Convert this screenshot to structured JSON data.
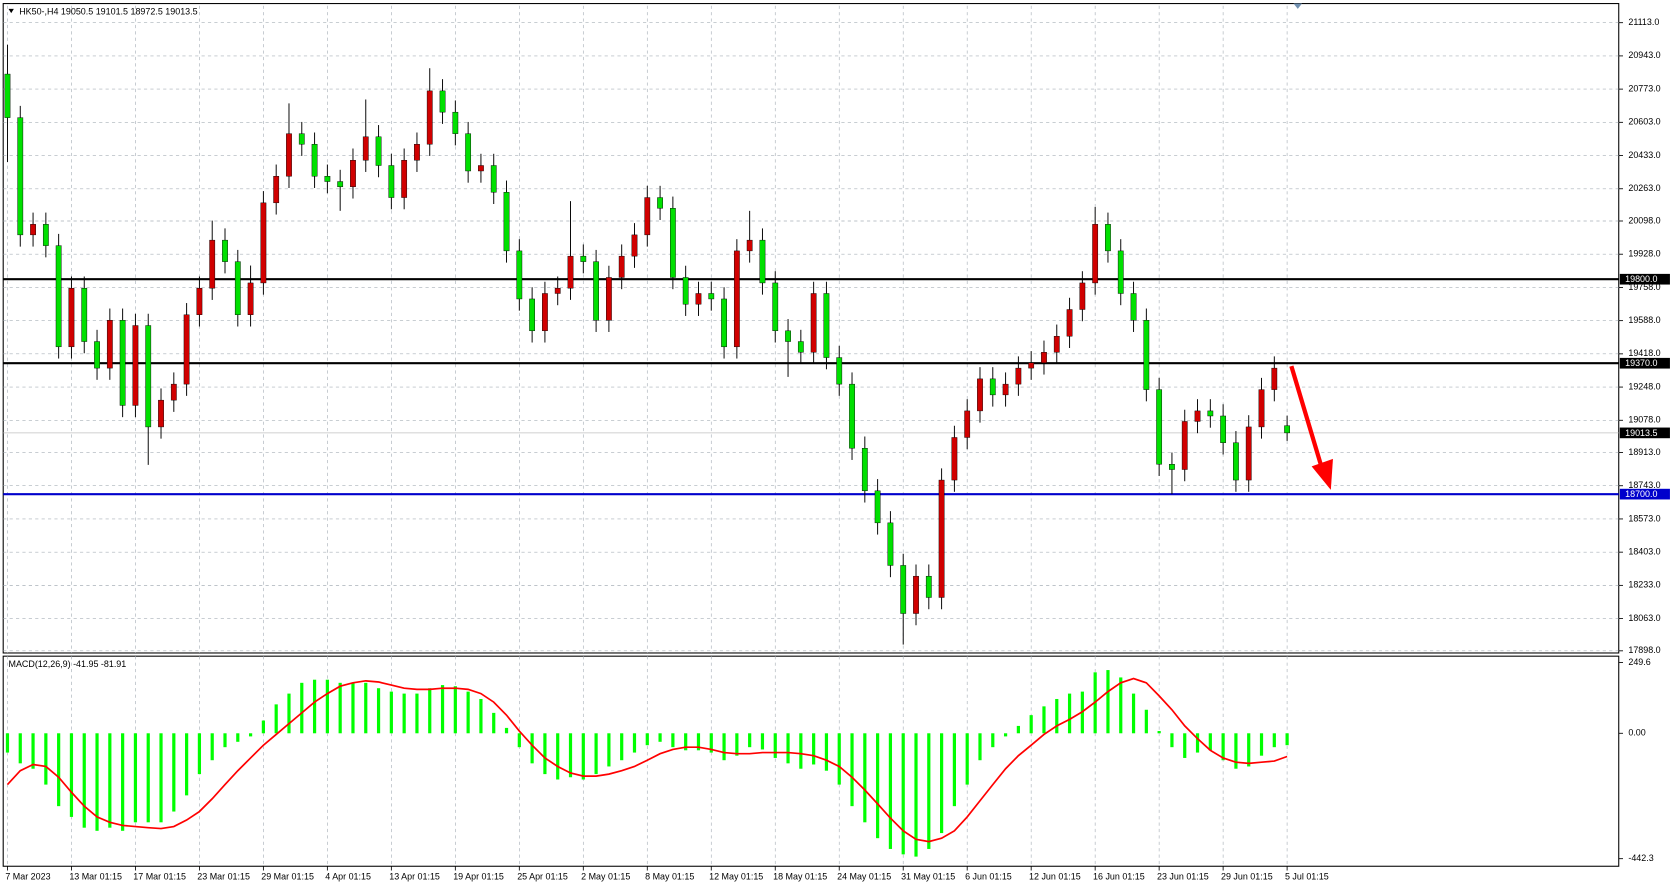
{
  "chart_data": [
    {
      "type": "candlestick",
      "title": "HK50-,H4  19050.5 19101.5 18972.5 19013.5",
      "categories": [
        "7 Mar 2023",
        null,
        null,
        null,
        null,
        "13 Mar 01:15",
        null,
        null,
        null,
        null,
        "17 Mar 01:15",
        null,
        null,
        null,
        null,
        "23 Mar 01:15",
        null,
        null,
        null,
        null,
        "29 Mar 01:15",
        null,
        null,
        null,
        null,
        "4 Apr 01:15",
        null,
        null,
        null,
        null,
        "13 Apr 01:15",
        null,
        null,
        null,
        null,
        "19 Apr 01:15",
        null,
        null,
        null,
        null,
        "25 Apr 01:15",
        null,
        null,
        null,
        null,
        "2 May 01:15",
        null,
        null,
        null,
        null,
        "8 May 01:15",
        null,
        null,
        null,
        null,
        "12 May 01:15",
        null,
        null,
        null,
        null,
        "18 May 01:15",
        null,
        null,
        null,
        null,
        "24 May 01:15",
        null,
        null,
        null,
        null,
        "31 May 01:15",
        null,
        null,
        null,
        null,
        "6 Jun 01:15",
        null,
        null,
        null,
        null,
        "12 Jun 01:15",
        null,
        null,
        null,
        null,
        "16 Jun 01:15",
        null,
        null,
        null,
        null,
        "23 Jun 01:15",
        null,
        null,
        null,
        null,
        "29 Jun 01:15",
        null,
        null,
        null,
        null,
        "5 Jul 01:15"
      ],
      "open": [
        20850,
        20627,
        20027,
        20081,
        19972,
        19454,
        19754,
        19481,
        19345,
        19590,
        19154,
        19563,
        19044,
        19181,
        19263,
        19618,
        19754,
        20000,
        19890,
        19618,
        19781,
        20191,
        20327,
        20545,
        20491,
        20327,
        20300,
        20273,
        20409,
        20529,
        20382,
        20218,
        20409,
        20491,
        20764,
        20655,
        20545,
        20354,
        20382,
        20245,
        19945,
        19699,
        19536,
        19727,
        19754,
        19918,
        19890,
        19590,
        19809,
        19918,
        20027,
        20218,
        20163,
        19809,
        19672,
        19727,
        19699,
        19454,
        19945,
        20000,
        19781,
        19536,
        19481,
        19426,
        19727,
        19399,
        19263,
        18935,
        18717,
        18553,
        18335,
        18089,
        18280,
        18171,
        18772,
        18990,
        19126,
        19290,
        19208,
        19263,
        19345,
        19372,
        19426,
        19508,
        19645,
        19781,
        20081,
        19945,
        19727,
        19590,
        19235,
        18853,
        18826,
        19072,
        19126,
        19100,
        18963,
        18772,
        19044,
        19235,
        19050.5
      ],
      "high": [
        21000,
        20687,
        20141,
        20141,
        20032,
        19814,
        19814,
        19541,
        19650,
        19650,
        19623,
        19623,
        19241,
        19323,
        19678,
        19814,
        20100,
        20060,
        19950,
        19870,
        20251,
        20387,
        20700,
        20605,
        20551,
        20387,
        20360,
        20469,
        20720,
        20589,
        20442,
        20469,
        20551,
        20880,
        20824,
        20715,
        20605,
        20442,
        20442,
        20305,
        20005,
        19759,
        19787,
        19814,
        20200,
        19978,
        19950,
        19869,
        19978,
        20087,
        20278,
        20278,
        20223,
        19869,
        19787,
        19787,
        19759,
        20005,
        20150,
        20060,
        19841,
        19596,
        19541,
        19787,
        19787,
        19459,
        19323,
        18995,
        18777,
        18613,
        18395,
        18340,
        18340,
        18832,
        19050,
        19186,
        19350,
        19350,
        19323,
        19405,
        19432,
        19486,
        19568,
        19705,
        19841,
        20170,
        20141,
        20005,
        19787,
        19650,
        19295,
        18913,
        19132,
        19186,
        19186,
        19160,
        19023,
        19104,
        19295,
        19405,
        19101.5
      ],
      "low": [
        20400,
        19967,
        19967,
        19912,
        19394,
        19394,
        19421,
        19285,
        19285,
        19094,
        19094,
        18850,
        18984,
        19121,
        19203,
        19558,
        19694,
        19830,
        19558,
        19558,
        19721,
        20131,
        20267,
        20431,
        20267,
        20240,
        20150,
        20213,
        20349,
        20322,
        20158,
        20158,
        20349,
        20431,
        20595,
        20485,
        20294,
        20294,
        20185,
        19885,
        19639,
        19476,
        19476,
        19667,
        19694,
        19830,
        19530,
        19530,
        19749,
        19858,
        19967,
        20103,
        19749,
        19612,
        19612,
        19639,
        19394,
        19394,
        19885,
        19721,
        19476,
        19300,
        19366,
        19366,
        19339,
        19203,
        18875,
        18657,
        18493,
        18275,
        17930,
        18029,
        18111,
        18111,
        18712,
        18930,
        19066,
        19148,
        19148,
        19203,
        19285,
        19312,
        19366,
        19448,
        19585,
        19721,
        19885,
        19667,
        19530,
        19175,
        18793,
        18700,
        18766,
        19012,
        19040,
        18903,
        18712,
        18712,
        18984,
        19175,
        18972.5
      ],
      "close": [
        20627,
        20027,
        20081,
        19972,
        19454,
        19754,
        19481,
        19345,
        19590,
        19154,
        19563,
        19044,
        19181,
        19263,
        19618,
        19754,
        20000,
        19890,
        19618,
        19781,
        20191,
        20327,
        20545,
        20491,
        20327,
        20300,
        20273,
        20409,
        20529,
        20382,
        20218,
        20409,
        20491,
        20764,
        20655,
        20545,
        20354,
        20382,
        20245,
        19945,
        19699,
        19536,
        19727,
        19754,
        19918,
        19890,
        19590,
        19809,
        19918,
        20027,
        20218,
        20163,
        19809,
        19672,
        19727,
        19699,
        19454,
        19945,
        20000,
        19781,
        19536,
        19481,
        19426,
        19727,
        19399,
        19263,
        18935,
        18717,
        18553,
        18335,
        18089,
        18280,
        18171,
        18772,
        18990,
        19126,
        19290,
        19208,
        19263,
        19345,
        19372,
        19426,
        19508,
        19645,
        19781,
        20081,
        19945,
        19727,
        19590,
        19235,
        18853,
        18826,
        19072,
        19126,
        19100,
        18963,
        18772,
        19044,
        19235,
        19345,
        19013.5
      ],
      "up_color": "#d00000",
      "down_color": "#00e000",
      "ylim": [
        17887,
        21200
      ],
      "yticks": [
        {
          "value": 21113,
          "label": "21113.0"
        },
        {
          "value": 20943,
          "label": "20943.0"
        },
        {
          "value": 20773,
          "label": "20773.0"
        },
        {
          "value": 20603,
          "label": "20603.0"
        },
        {
          "value": 20433,
          "label": "20433.0"
        },
        {
          "value": 20263,
          "label": "20263.0"
        },
        {
          "value": 20098,
          "label": "20098.0"
        },
        {
          "value": 19928,
          "label": "19928.0"
        },
        {
          "value": 19758,
          "label": "19758.0"
        },
        {
          "value": 19588,
          "label": "19588.0"
        },
        {
          "value": 19418,
          "label": "19418.0"
        },
        {
          "value": 19248,
          "label": "19248.0"
        },
        {
          "value": 19078,
          "label": "19078.0"
        },
        {
          "value": 18913,
          "label": "18913.0"
        },
        {
          "value": 18743,
          "label": "18743.0"
        },
        {
          "value": 18573,
          "label": "18573.0"
        },
        {
          "value": 18403,
          "label": "18403.0"
        },
        {
          "value": 18233,
          "label": "18233.0"
        },
        {
          "value": 18063,
          "label": "18063.0"
        },
        {
          "value": 17898,
          "label": "17898.0"
        }
      ],
      "grid": true,
      "hlines": [
        {
          "value": 19800,
          "label": "19800.0",
          "color": "#000000"
        },
        {
          "value": 19370,
          "label": "19370.0",
          "color": "#000000"
        },
        {
          "value": 18700,
          "label": "18700.0",
          "color": "#0000cc"
        }
      ],
      "current_price": {
        "value": 19013.5,
        "label": "19013.5",
        "color": "#c0c0c0"
      }
    },
    {
      "type": "macd",
      "title": "MACD(12,26,9) -41.95 -81.91",
      "values": [
        -68,
        -106,
        -125,
        -181,
        -257,
        -295,
        -333,
        -344,
        -333,
        -344,
        -314,
        -314,
        -314,
        -276,
        -219,
        -144,
        -95,
        -49,
        -30,
        -11,
        45,
        102,
        140,
        178,
        189,
        189,
        178,
        178,
        178,
        159,
        147,
        140,
        140,
        159,
        170,
        166,
        147,
        121,
        72,
        19,
        -49,
        -106,
        -144,
        -163,
        -155,
        -163,
        -144,
        -117,
        -95,
        -68,
        -42,
        -30,
        -49,
        -60,
        -60,
        -68,
        -95,
        -79,
        -49,
        -57,
        -87,
        -106,
        -125,
        -110,
        -132,
        -181,
        -257,
        -314,
        -370,
        -408,
        -427,
        -435,
        -408,
        -352,
        -257,
        -181,
        -95,
        -49,
        -11,
        26,
        64,
        95,
        121,
        140,
        147,
        215,
        223,
        197,
        140,
        83,
        8,
        -49,
        -87,
        -68,
        -60,
        -95,
        -125,
        -117,
        -79,
        -49,
        -41.95
      ],
      "color": "#00ff00",
      "signal": [
        -181,
        -132,
        -110,
        -117,
        -155,
        -208,
        -257,
        -295,
        -314,
        -325,
        -329,
        -333,
        -336,
        -329,
        -306,
        -276,
        -231,
        -181,
        -132,
        -87,
        -42,
        -4,
        34,
        72,
        110,
        140,
        166,
        178,
        185,
        181,
        170,
        159,
        155,
        155,
        159,
        159,
        155,
        140,
        110,
        64,
        8,
        -42,
        -87,
        -117,
        -140,
        -151,
        -151,
        -144,
        -132,
        -117,
        -95,
        -72,
        -57,
        -49,
        -49,
        -57,
        -68,
        -72,
        -72,
        -68,
        -68,
        -68,
        -72,
        -79,
        -95,
        -117,
        -155,
        -200,
        -249,
        -299,
        -344,
        -374,
        -382,
        -370,
        -344,
        -295,
        -238,
        -181,
        -125,
        -79,
        -42,
        -4,
        26,
        49,
        76,
        110,
        147,
        178,
        193,
        178,
        132,
        83,
        26,
        -19,
        -60,
        -87,
        -102,
        -106,
        -102,
        -98,
        -81.91
      ],
      "signal_color": "#ff0000",
      "ylim": [
        -469,
        272
      ],
      "yticks": [
        249.6,
        {
          "value": 0,
          "label": "0.00"
        },
        -442.3
      ]
    }
  ]
}
